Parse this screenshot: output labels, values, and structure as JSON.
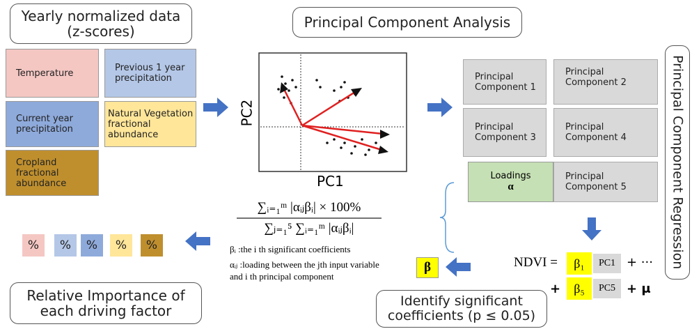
{
  "input": {
    "title": "Yearly normalized data\n(z-scores)",
    "variables": [
      "Temperature",
      "Previous 1 year\nprecipitation",
      "Current year\nprecipitation",
      "Natural Vegetation\nfractional\nabundance",
      "Cropland\nfractional\nabundance"
    ]
  },
  "pca": {
    "title": "Principal Component Analysis",
    "x_label": "PC1",
    "y_label": "PC2"
  },
  "formula": {
    "numerator": "∑ᵢ₌₁ᵐ |αᵢⱼβᵢ|  × 100%",
    "denominator": "∑ⱼ₌₁⁵ ∑ᵢ₌₁ᵐ |αᵢⱼβᵢ|",
    "notes": [
      "βᵢ :the i th significant coefficients",
      "αᵢⱼ :loading between the jth input variable\nand i th principal component"
    ]
  },
  "components": [
    "Principal\nComponent 1",
    "Principal\nComponent 2",
    "Principal\nComponent 3",
    "Principal\nComponent 4",
    "Principal\nComponent 5"
  ],
  "loadings": {
    "label": "Loadings",
    "symbol": "α"
  },
  "regression": {
    "title": "Principal Component Regression",
    "equation": {
      "lhs": "NDVI =",
      "beta1": "β₁",
      "pc1": "PC1",
      "plus_dots": "+  ···",
      "plus": "+",
      "beta5": "β₅",
      "pc5": "PC5",
      "plus_mu": "+ μ"
    },
    "beta": "β",
    "significance": "Identify significant\ncoefficients (p ≤ 0.05)"
  },
  "importance": {
    "boxes": [
      "%",
      "%",
      "%",
      "%",
      "%"
    ],
    "title": "Relative Importance of\neach driving factor"
  }
}
